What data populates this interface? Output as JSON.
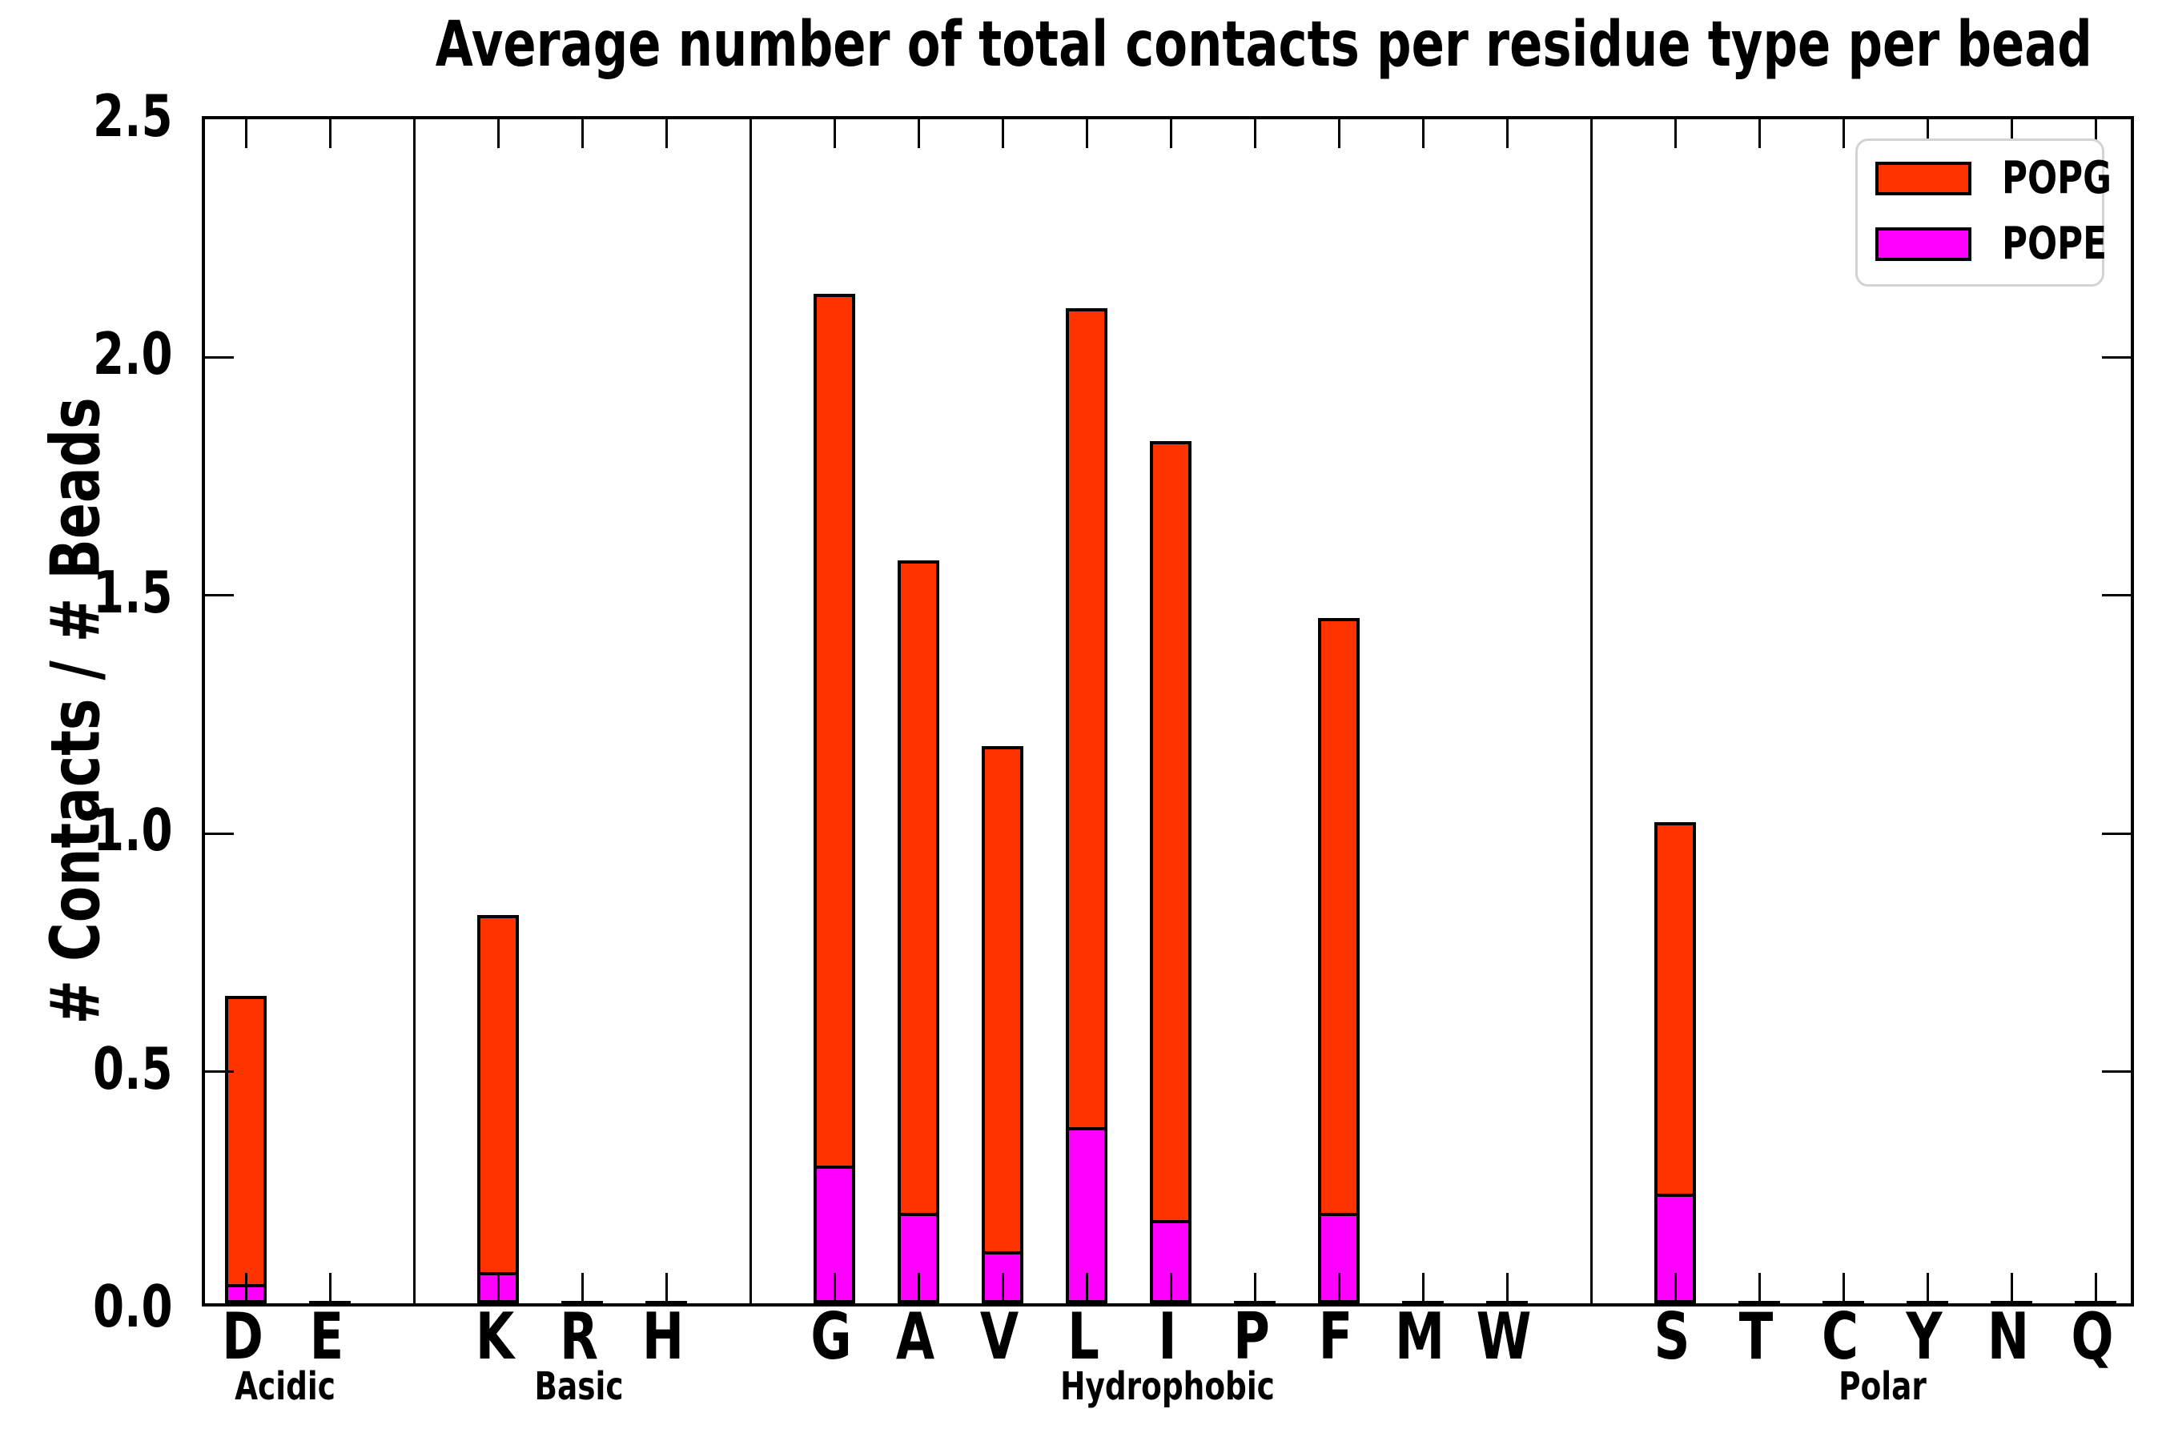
{
  "title": "Average number of total contacts per residue type per bead",
  "y_axis": {
    "label": "# Contacts / # Beads",
    "tick_labels": [
      "0.0",
      "0.5",
      "1.0",
      "1.5",
      "2.0",
      "2.5"
    ],
    "tick_values": [
      0.0,
      0.5,
      1.0,
      1.5,
      2.0,
      2.5
    ],
    "max": 2.5
  },
  "legend": {
    "items": [
      {
        "label": "POPG",
        "color": "#FF3300"
      },
      {
        "label": "POPE",
        "color": "#FF00FF"
      }
    ]
  },
  "colors": {
    "popg": "#FF3300",
    "pope": "#FF00FF",
    "axis": "#000000",
    "legend_border": "#D3D3D3",
    "background": "#FFFFFF"
  },
  "chart_data": {
    "type": "bar",
    "stacked": true,
    "title": "Average number of total contacts per residue type per bead",
    "xlabel": "",
    "ylabel": "# Contacts / # Beads",
    "ylim": [
      0,
      2.5
    ],
    "grid": false,
    "legend_position": "upper right",
    "categories": [
      "D",
      "E",
      "K",
      "R",
      "H",
      "G",
      "A",
      "V",
      "L",
      "I",
      "P",
      "F",
      "M",
      "W",
      "S",
      "T",
      "C",
      "Y",
      "N",
      "Q"
    ],
    "groups": [
      {
        "label": "Acidic",
        "residues": [
          "D",
          "E"
        ]
      },
      {
        "label": "Basic",
        "residues": [
          "K",
          "R",
          "H"
        ]
      },
      {
        "label": "Hydrophobic",
        "residues": [
          "G",
          "A",
          "V",
          "L",
          "I",
          "P",
          "F",
          "M",
          "W"
        ]
      },
      {
        "label": "Polar",
        "residues": [
          "S",
          "T",
          "C",
          "Y",
          "N",
          "Q"
        ]
      }
    ],
    "series": [
      {
        "name": "POPE",
        "color": "#FF00FF",
        "values": [
          0.04,
          0.002,
          0.065,
          0.002,
          0.002,
          0.29,
          0.19,
          0.11,
          0.37,
          0.175,
          0.002,
          0.19,
          0.002,
          0.002,
          0.23,
          0.002,
          0.002,
          0.002,
          0.002,
          0.002
        ]
      },
      {
        "name": "POPG",
        "color": "#FF3300",
        "values": [
          0.605,
          0.003,
          0.75,
          0.003,
          0.003,
          1.83,
          1.37,
          1.06,
          1.72,
          1.635,
          0.003,
          1.25,
          0.003,
          0.003,
          0.78,
          0.003,
          0.003,
          0.003,
          0.003,
          0.003
        ]
      }
    ],
    "totals": [
      0.645,
      0.005,
      0.815,
      0.005,
      0.005,
      2.12,
      1.56,
      1.17,
      2.09,
      1.81,
      0.005,
      1.44,
      0.005,
      0.005,
      1.01,
      0.005,
      0.005,
      0.005,
      0.005,
      0.005
    ]
  }
}
